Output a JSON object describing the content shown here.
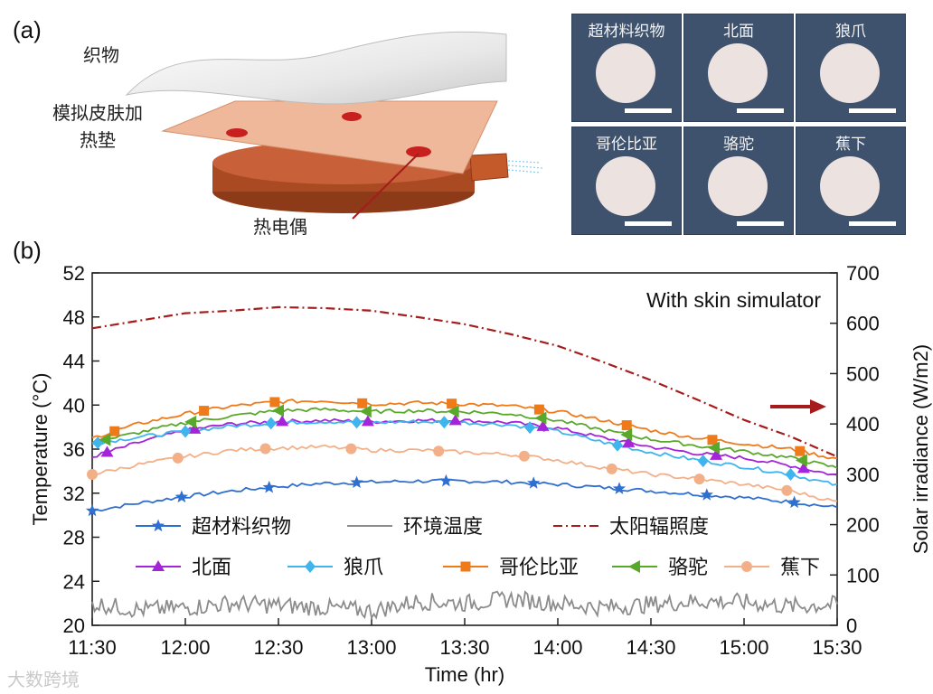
{
  "panel_a": {
    "label": "(a)",
    "diagram_labels": {
      "fabric": "织物",
      "skin_heater_line1": "模拟皮肤加",
      "skin_heater_line2": "热垫",
      "thermocouple": "热电偶"
    },
    "photos": [
      {
        "caption": "超材料织物"
      },
      {
        "caption": "北面"
      },
      {
        "caption": "狼爪"
      },
      {
        "caption": "哥伦比亚"
      },
      {
        "caption": "骆驼"
      },
      {
        "caption": "蕉下"
      }
    ]
  },
  "panel_b": {
    "label": "(b)"
  },
  "watermark": "大数跨境",
  "colors": {
    "超材料织物": "#2f6fcf",
    "环境温度": "#8c8c8c",
    "太阳辐照度": "#a61c1c",
    "北面": "#a424d8",
    "狼爪": "#40b4ec",
    "哥伦比亚": "#ee7a1a",
    "骆驼": "#58a82a",
    "蕉下": "#f3b088"
  },
  "chart_data": {
    "type": "line",
    "annotation": "With skin simulator",
    "xlabel": "Time (hr)",
    "ylabel": "Temperature (°C)",
    "y2label": "Solar irradiance (W/m2)",
    "x_ticks": [
      "11:30",
      "12:00",
      "12:30",
      "13:00",
      "13:30",
      "14:00",
      "14:30",
      "15:00",
      "15:30"
    ],
    "xlim_hours": [
      11.5,
      15.5
    ],
    "ylim": [
      20,
      52
    ],
    "yticks": [
      20,
      24,
      28,
      32,
      36,
      40,
      44,
      48,
      52
    ],
    "y2lim": [
      0,
      700
    ],
    "y2ticks": [
      0,
      100,
      200,
      300,
      400,
      500,
      600,
      700
    ],
    "x_hours": [
      11.5,
      11.75,
      12.0,
      12.25,
      12.5,
      12.75,
      13.0,
      13.25,
      13.5,
      13.75,
      14.0,
      14.25,
      14.5,
      14.75,
      15.0,
      15.25,
      15.5
    ],
    "series": [
      {
        "name": "超材料织物",
        "marker": "star",
        "axis": "left",
        "values": [
          30.4,
          31.1,
          31.7,
          32.2,
          32.6,
          32.9,
          33.0,
          33.1,
          33.1,
          33.0,
          32.8,
          32.5,
          32.2,
          31.9,
          31.6,
          31.2,
          30.7
        ]
      },
      {
        "name": "北面",
        "marker": "triangle",
        "axis": "left",
        "values": [
          35.3,
          36.6,
          37.7,
          38.3,
          38.5,
          38.6,
          38.5,
          38.6,
          38.6,
          38.4,
          37.9,
          37.0,
          36.2,
          35.6,
          35.2,
          34.5,
          33.6
        ]
      },
      {
        "name": "狼爪",
        "marker": "diamond",
        "axis": "left",
        "values": [
          36.5,
          37.1,
          37.6,
          38.1,
          38.4,
          38.5,
          38.4,
          38.5,
          38.4,
          38.2,
          37.6,
          36.6,
          35.7,
          35.0,
          34.4,
          33.7,
          32.7
        ]
      },
      {
        "name": "哥伦比亚",
        "marker": "square",
        "axis": "left",
        "values": [
          37.0,
          38.3,
          39.2,
          39.9,
          40.3,
          40.4,
          40.1,
          40.2,
          40.1,
          39.9,
          39.4,
          38.6,
          37.7,
          37.0,
          36.5,
          36.0,
          35.1
        ]
      },
      {
        "name": "骆驼",
        "marker": "left-triangle",
        "axis": "left",
        "values": [
          36.6,
          37.5,
          38.4,
          39.0,
          39.5,
          39.6,
          39.4,
          39.5,
          39.4,
          39.2,
          38.6,
          37.7,
          36.9,
          36.3,
          35.8,
          35.2,
          34.3
        ]
      },
      {
        "name": "蕉下",
        "marker": "circle",
        "axis": "left",
        "values": [
          33.7,
          34.6,
          35.3,
          35.9,
          36.1,
          36.2,
          35.9,
          35.9,
          35.7,
          35.5,
          35.0,
          34.3,
          33.7,
          33.3,
          32.8,
          32.2,
          31.2
        ]
      },
      {
        "name": "环境温度",
        "marker": "none",
        "axis": "left",
        "values": [
          22.0,
          21.4,
          21.6,
          22.0,
          21.8,
          21.6,
          21.3,
          22.2,
          22.0,
          22.4,
          22.0,
          21.6,
          21.9,
          22.2,
          22.1,
          21.7,
          21.9
        ]
      },
      {
        "name": "太阳辐照度",
        "marker": "none",
        "axis": "right",
        "style": "dash-dot",
        "values": [
          590,
          605,
          620,
          625,
          632,
          630,
          625,
          612,
          598,
          578,
          555,
          522,
          487,
          448,
          408,
          375,
          335
        ]
      }
    ],
    "marker_hours": {
      "超材料织物": [
        11.5,
        11.98,
        12.45,
        12.92,
        13.4,
        13.87,
        14.33,
        14.8,
        15.27
      ],
      "北面": [
        11.58,
        12.05,
        12.52,
        12.98,
        13.45,
        13.92,
        14.38,
        14.85,
        15.32
      ],
      "狼爪": [
        11.53,
        12.0,
        12.46,
        12.92,
        13.39,
        13.85,
        14.32,
        14.78,
        15.25
      ],
      "哥伦比亚": [
        11.62,
        12.1,
        12.48,
        12.95,
        13.43,
        13.9,
        14.37,
        14.83,
        15.3
      ],
      "骆驼": [
        11.57,
        12.03,
        12.5,
        12.97,
        13.44,
        13.91,
        14.37,
        14.84,
        15.31
      ],
      "蕉下": [
        11.5,
        11.96,
        12.43,
        12.89,
        13.36,
        13.82,
        14.29,
        14.76,
        15.23
      ]
    },
    "legend": {
      "placement": "lower-left",
      "row1": [
        "超材料织物",
        "环境温度",
        "太阳辐照度"
      ],
      "row2": [
        "北面",
        "狼爪",
        "哥伦比亚",
        "骆驼",
        "蕉下"
      ]
    },
    "arrow": {
      "direction": "right",
      "axis": "right"
    }
  }
}
